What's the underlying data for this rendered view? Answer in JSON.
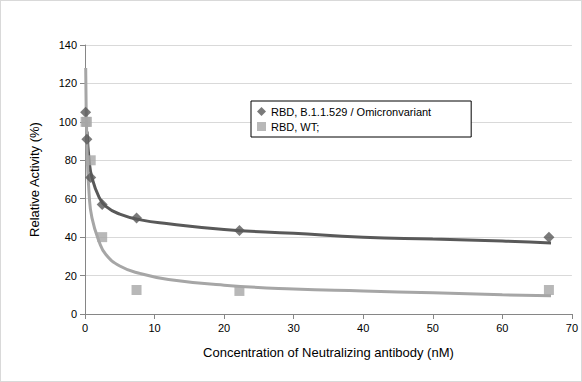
{
  "chart_data": {
    "type": "scatter",
    "x_label": "Concentration of Neutralizing antibody (nM)",
    "y_label": "Relative Activity (%)",
    "xlim": [
      0,
      70
    ],
    "xticks": [
      0,
      10,
      20,
      30,
      40,
      50,
      60,
      70
    ],
    "ylim": [
      0,
      140
    ],
    "yticks": [
      0,
      20,
      40,
      60,
      80,
      100,
      120,
      140
    ],
    "grid": true,
    "legend": "right",
    "series": [
      {
        "name": "RBD, B.1.1.529 / Omicronvariant",
        "color": "#595959",
        "marker": "diamond",
        "line_style": "solid",
        "x": [
          0.09,
          0.27,
          0.82,
          2.47,
          7.41,
          22.2,
          66.7
        ],
        "values": [
          105,
          91,
          71,
          57,
          50,
          43.5,
          40
        ],
        "fit_x": [
          0.3,
          0.6,
          1,
          2,
          3,
          5,
          8,
          12,
          20,
          30,
          40,
          50,
          60,
          67
        ],
        "fit_values": [
          95,
          80,
          71,
          61,
          56,
          52,
          49,
          47,
          44,
          42,
          40,
          39,
          38,
          37
        ]
      },
      {
        "name": "RBD, WT;",
        "color": "#a6a6a6",
        "marker": "square",
        "line_style": "solid",
        "x": [
          0.09,
          0.27,
          0.82,
          2.47,
          7.41,
          22.2,
          66.7
        ],
        "values": [
          100,
          100,
          80,
          40,
          12.5,
          12,
          12.5
        ],
        "fit_x": [
          0.1,
          0.3,
          0.6,
          1,
          2,
          3,
          5,
          8,
          12,
          20,
          30,
          40,
          50,
          60,
          67
        ],
        "fit_values": [
          128,
          85,
          62,
          50,
          38,
          31,
          25,
          21,
          18,
          15,
          13,
          12,
          11,
          10,
          9.5
        ]
      }
    ]
  }
}
